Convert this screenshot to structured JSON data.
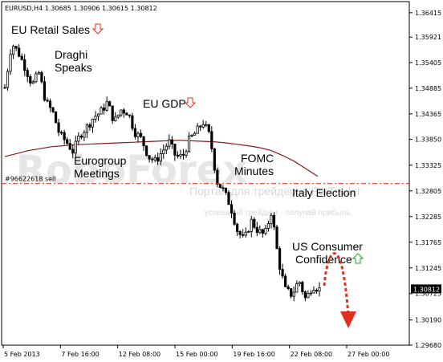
{
  "chart_data": {
    "type": "candlestick",
    "header": "EURUSD,H4  1.30685 1.30906 1.30615 1.30812",
    "ylim": [
      1.2968,
      1.3664
    ],
    "y_ticks": [
      "1.36415",
      "1.35921",
      "1.35405",
      "1.34885",
      "1.34365",
      "1.33850",
      "1.33325",
      "1.32805",
      "1.32285",
      "1.31765",
      "1.31245",
      "1.30725",
      "1.30190",
      "1.29680"
    ],
    "x_ticks": [
      "5 Feb 2013",
      "7 Feb 16:00",
      "12 Feb 08:00",
      "15 Feb 00:00",
      "19 Feb 16:00",
      "22 Feb 08:00",
      "27 Feb 00:00"
    ],
    "current_price": "1.30812",
    "sell_line": {
      "label": "#96622618 sell",
      "value": 1.32955
    },
    "close_path": [
      1.349,
      1.358,
      1.356,
      1.353,
      1.3495,
      1.352,
      1.346,
      1.344,
      1.3395,
      1.338,
      1.336,
      1.3395,
      1.341,
      1.343,
      1.344,
      1.346,
      1.342,
      1.3445,
      1.344,
      1.34,
      1.3385,
      1.335,
      1.334,
      1.336,
      1.338,
      1.335,
      1.335,
      1.3385,
      1.34,
      1.342,
      1.339,
      1.33,
      1.328,
      1.325,
      1.32,
      1.318,
      1.322,
      1.32,
      1.319,
      1.324,
      1.314,
      1.308,
      1.307,
      1.31,
      1.306,
      1.309,
      1.3081
    ],
    "ma_path": [
      1.335,
      1.3356,
      1.3362,
      1.3366,
      1.337,
      1.3372,
      1.3374,
      1.3375,
      1.3376,
      1.3377,
      1.3378,
      1.3379,
      1.338,
      1.3381,
      1.3382,
      1.3383,
      1.3382,
      1.3381,
      1.338,
      1.3378,
      1.3375,
      1.3372,
      1.3368,
      1.3362,
      1.3352,
      1.334,
      1.3325,
      1.331
    ],
    "annotations": [
      {
        "text": "EU Retail Sales",
        "marker": "down"
      },
      {
        "text": "Draghi"
      },
      {
        "text": "Speaks"
      },
      {
        "text": "EU GDP",
        "marker": "down"
      },
      {
        "text": "Eurogroup"
      },
      {
        "text": "Meetings"
      },
      {
        "text": "FOMC"
      },
      {
        "text": "Minutes"
      },
      {
        "text": "Italy Election"
      },
      {
        "text": "US Consumer"
      },
      {
        "text": "Confidence",
        "marker": "up"
      }
    ],
    "watermark": "RoboForex",
    "watermark_caption": "Портал для трейдеров ForTrader",
    "watermark_caption2": "успешный трейдинг - получай прибыль",
    "colors": {
      "candle": "#000000",
      "ma": "#8b1a1a",
      "sell_line": "#e0301e",
      "down_arrow": "#e0301e",
      "up_arrow": "#2a9d2a",
      "forecast": "#e0301e"
    }
  }
}
